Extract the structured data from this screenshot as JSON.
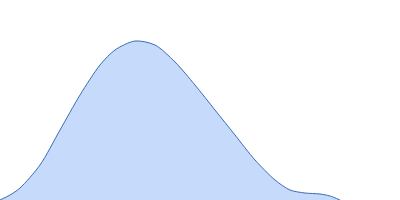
{
  "chart_data": {
    "type": "area",
    "x": [
      0,
      10,
      20,
      40,
      60,
      80,
      100,
      115,
      135,
      155,
      175,
      195,
      215,
      235,
      255,
      275,
      290,
      305,
      320,
      330,
      340
    ],
    "values": [
      0,
      5,
      12,
      35,
      70,
      105,
      135,
      150,
      159,
      155,
      138,
      115,
      90,
      65,
      40,
      20,
      10,
      7,
      6,
      4,
      0
    ],
    "color": "#c6dafc",
    "xlim": [
      0,
      400
    ],
    "ylim": [
      0,
      200
    ],
    "grid": false,
    "tick_labels": false
  }
}
